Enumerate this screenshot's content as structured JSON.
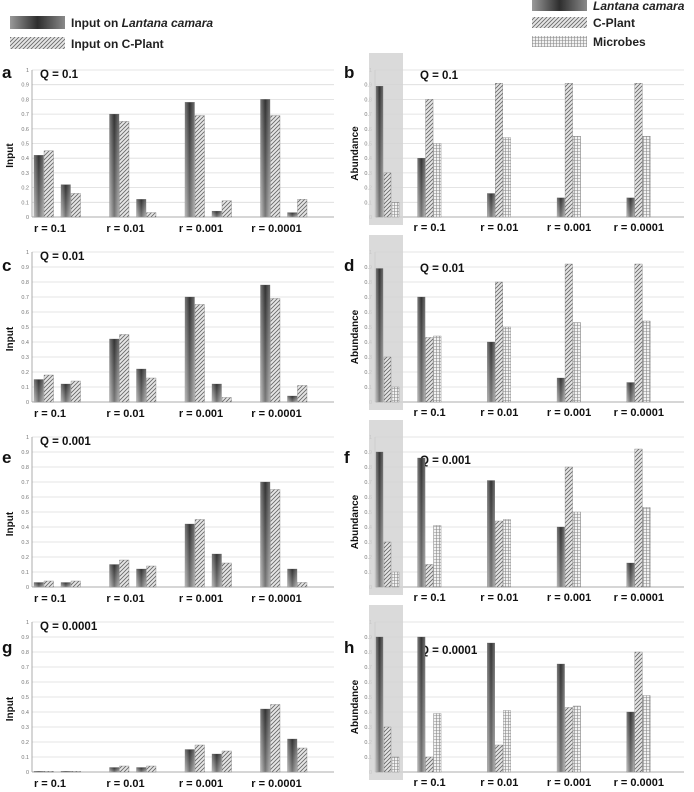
{
  "legend_left": [
    {
      "label_prefix": "Input on ",
      "label_italic": "Lantana camara",
      "pattern": "lantana"
    },
    {
      "label_prefix": "Input on C-Plant",
      "label_italic": "",
      "pattern": "cplant"
    }
  ],
  "legend_right": [
    {
      "label_prefix": "",
      "label_italic": "Lantana camara",
      "pattern": "lantana"
    },
    {
      "label_prefix": "C-Plant",
      "label_italic": "",
      "pattern": "cplant"
    },
    {
      "label_prefix": "Microbes",
      "label_italic": "",
      "pattern": "microbes"
    }
  ],
  "colors": {
    "lantana": "#4a4a4a",
    "cplant": "#9a9a9a",
    "microbes": "#b5b5b5",
    "highlight": "#d3d3d3"
  },
  "chart_data": [
    {
      "id": "a",
      "type": "bar",
      "title": "Q = 0.1",
      "ylabel": "Input",
      "ylim": [
        0,
        1
      ],
      "yticks": [
        "0",
        "0.1",
        "0.2",
        "0.3",
        "0.4",
        "0.5",
        "0.6",
        "0.7",
        "0.8",
        "0.9",
        "1"
      ],
      "categories": [
        "r = 0.1",
        "r = 0.01",
        "r = 0.001",
        "r = 0.0001"
      ],
      "series": [
        {
          "name": "Input on Lantana camara",
          "values": [
            0.42,
            0.7,
            0.78,
            0.8
          ],
          "pattern": "lantana"
        },
        {
          "name": "Input on C-Plant",
          "values": [
            0.45,
            0.65,
            0.69,
            0.69
          ],
          "pattern": "cplant"
        },
        {
          "name": "Input on Lantana camara",
          "values": [
            0.22,
            0.12,
            0.04,
            0.03
          ],
          "pattern": "lantana"
        },
        {
          "name": "Input on C-Plant",
          "values": [
            0.16,
            0.03,
            0.11,
            0.12
          ],
          "pattern": "cplant"
        }
      ]
    },
    {
      "id": "b",
      "type": "bar",
      "title": "Q = 0.1",
      "ylabel": "Abundance",
      "ylim": [
        0,
        1
      ],
      "yticks": [
        "0",
        "0.1",
        "0.2",
        "0.3",
        "0.4",
        "0.5",
        "0.6",
        "0.7",
        "0.8",
        "0.9",
        "1"
      ],
      "categories": [
        "r = 0.1",
        "r = 0.01",
        "r = 0.001",
        "r = 0.0001"
      ],
      "initial": {
        "values": [
          0.89,
          0.3,
          0.1
        ],
        "patterns": [
          "lantana",
          "cplant",
          "microbes"
        ]
      },
      "series": [
        {
          "name": "Lantana camara",
          "values": [
            0.4,
            0.16,
            0.13,
            0.13
          ],
          "pattern": "lantana"
        },
        {
          "name": "C-Plant",
          "values": [
            0.8,
            0.91,
            0.91,
            0.91
          ],
          "pattern": "cplant"
        },
        {
          "name": "Microbes",
          "values": [
            0.5,
            0.54,
            0.55,
            0.55
          ],
          "pattern": "microbes"
        }
      ]
    },
    {
      "id": "c",
      "type": "bar",
      "title": "Q = 0.01",
      "ylabel": "Input",
      "ylim": [
        0,
        1
      ],
      "yticks": [
        "0",
        "0.1",
        "0.2",
        "0.3",
        "0.4",
        "0.5",
        "0.6",
        "0.7",
        "0.8",
        "0.9",
        "1"
      ],
      "categories": [
        "r = 0.1",
        "r = 0.01",
        "r = 0.001",
        "r = 0.0001"
      ],
      "series": [
        {
          "name": "Input on Lantana camara",
          "values": [
            0.15,
            0.42,
            0.7,
            0.78
          ],
          "pattern": "lantana"
        },
        {
          "name": "Input on C-Plant",
          "values": [
            0.18,
            0.45,
            0.65,
            0.69
          ],
          "pattern": "cplant"
        },
        {
          "name": "Input on Lantana camara",
          "values": [
            0.12,
            0.22,
            0.12,
            0.04
          ],
          "pattern": "lantana"
        },
        {
          "name": "Input on C-Plant",
          "values": [
            0.14,
            0.16,
            0.03,
            0.11
          ],
          "pattern": "cplant"
        }
      ]
    },
    {
      "id": "d",
      "type": "bar",
      "title": "Q = 0.01",
      "ylabel": "Abundance",
      "ylim": [
        0,
        1
      ],
      "yticks": [
        "0",
        "0.1",
        "0.2",
        "0.3",
        "0.4",
        "0.5",
        "0.6",
        "0.7",
        "0.8",
        "0.9",
        "1"
      ],
      "categories": [
        "r = 0.1",
        "r = 0.01",
        "r = 0.001",
        "r = 0.0001"
      ],
      "initial": {
        "values": [
          0.89,
          0.3,
          0.1
        ],
        "patterns": [
          "lantana",
          "cplant",
          "microbes"
        ]
      },
      "series": [
        {
          "name": "Lantana camara",
          "values": [
            0.7,
            0.4,
            0.16,
            0.13
          ],
          "pattern": "lantana"
        },
        {
          "name": "C-Plant",
          "values": [
            0.43,
            0.8,
            0.92,
            0.92
          ],
          "pattern": "cplant"
        },
        {
          "name": "Microbes",
          "values": [
            0.44,
            0.5,
            0.53,
            0.54
          ],
          "pattern": "microbes"
        }
      ]
    },
    {
      "id": "e",
      "type": "bar",
      "title": "Q = 0.001",
      "ylabel": "Input",
      "ylim": [
        0,
        1
      ],
      "yticks": [
        "0",
        "0.1",
        "0.2",
        "0.3",
        "0.4",
        "0.5",
        "0.6",
        "0.7",
        "0.8",
        "0.9",
        "1"
      ],
      "categories": [
        "r = 0.1",
        "r = 0.01",
        "r = 0.001",
        "r = 0.0001"
      ],
      "series": [
        {
          "name": "Input on Lantana camara",
          "values": [
            0.03,
            0.15,
            0.42,
            0.7
          ],
          "pattern": "lantana"
        },
        {
          "name": "Input on C-Plant",
          "values": [
            0.04,
            0.18,
            0.45,
            0.65
          ],
          "pattern": "cplant"
        },
        {
          "name": "Input on Lantana camara",
          "values": [
            0.03,
            0.12,
            0.22,
            0.12
          ],
          "pattern": "lantana"
        },
        {
          "name": "Input on C-Plant",
          "values": [
            0.04,
            0.14,
            0.16,
            0.03
          ],
          "pattern": "cplant"
        }
      ]
    },
    {
      "id": "f",
      "type": "bar",
      "title": "Q = 0.001",
      "ylabel": "Abundance",
      "ylim": [
        0,
        1
      ],
      "yticks": [
        "0",
        "0.1",
        "0.2",
        "0.3",
        "0.4",
        "0.5",
        "0.6",
        "0.7",
        "0.8",
        "0.9",
        "1"
      ],
      "categories": [
        "r = 0.1",
        "r = 0.01",
        "r = 0.001",
        "r = 0.0001"
      ],
      "initial": {
        "values": [
          0.9,
          0.3,
          0.1
        ],
        "patterns": [
          "lantana",
          "cplant",
          "microbes"
        ]
      },
      "series": [
        {
          "name": "Lantana camara",
          "values": [
            0.86,
            0.71,
            0.4,
            0.16
          ],
          "pattern": "lantana"
        },
        {
          "name": "C-Plant",
          "values": [
            0.15,
            0.44,
            0.8,
            0.92
          ],
          "pattern": "cplant"
        },
        {
          "name": "Microbes",
          "values": [
            0.41,
            0.45,
            0.5,
            0.53
          ],
          "pattern": "microbes"
        }
      ]
    },
    {
      "id": "g",
      "type": "bar",
      "title": "Q = 0.0001",
      "ylabel": "Input",
      "ylim": [
        0,
        1
      ],
      "yticks": [
        "0",
        "0.1",
        "0.2",
        "0.3",
        "0.4",
        "0.5",
        "0.6",
        "0.7",
        "0.8",
        "0.9",
        "1"
      ],
      "categories": [
        "r = 0.1",
        "r = 0.01",
        "r = 0.001",
        "r = 0.0001"
      ],
      "series": [
        {
          "name": "Input on Lantana camara",
          "values": [
            0.005,
            0.03,
            0.15,
            0.42
          ],
          "pattern": "lantana"
        },
        {
          "name": "Input on C-Plant",
          "values": [
            0.005,
            0.04,
            0.18,
            0.45
          ],
          "pattern": "cplant"
        },
        {
          "name": "Input on Lantana camara",
          "values": [
            0.005,
            0.03,
            0.12,
            0.22
          ],
          "pattern": "lantana"
        },
        {
          "name": "Input on C-Plant",
          "values": [
            0.005,
            0.04,
            0.14,
            0.16
          ],
          "pattern": "cplant"
        }
      ]
    },
    {
      "id": "h",
      "type": "bar",
      "title": "Q = 0.0001",
      "ylabel": "Abundance",
      "ylim": [
        0,
        1
      ],
      "yticks": [
        "0",
        "0.1",
        "0.2",
        "0.3",
        "0.4",
        "0.5",
        "0.6",
        "0.7",
        "0.8",
        "0.9",
        "1"
      ],
      "categories": [
        "r = 0.1",
        "r = 0.01",
        "r = 0.001",
        "r = 0.0001"
      ],
      "initial": {
        "values": [
          0.9,
          0.3,
          0.1
        ],
        "patterns": [
          "lantana",
          "cplant",
          "microbes"
        ]
      },
      "series": [
        {
          "name": "Lantana camara",
          "values": [
            0.9,
            0.86,
            0.72,
            0.4
          ],
          "pattern": "lantana"
        },
        {
          "name": "C-Plant",
          "values": [
            0.1,
            0.18,
            0.43,
            0.8
          ],
          "pattern": "cplant"
        },
        {
          "name": "Microbes",
          "values": [
            0.39,
            0.41,
            0.44,
            0.51
          ],
          "pattern": "microbes"
        }
      ]
    }
  ]
}
